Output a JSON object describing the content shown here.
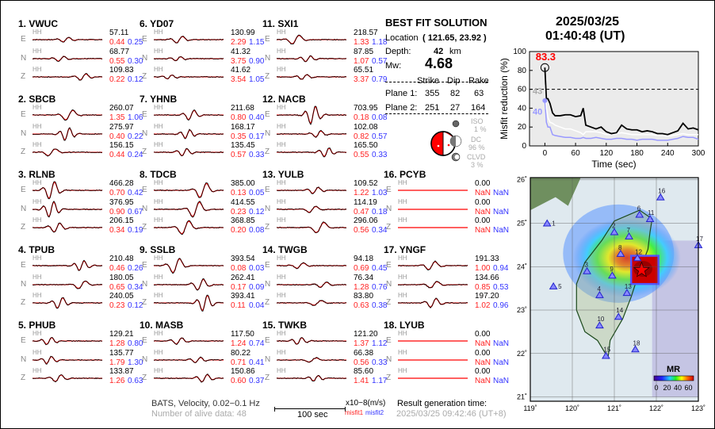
{
  "colors": {
    "observed": "#000000",
    "synthetic": "#ff0000",
    "misfit1": "#ff2222",
    "misfit2": "#3333ff",
    "mr_line": "#000000",
    "variance_line": "#ffffff",
    "misfit2_line": "#9999ff"
  },
  "stations": [
    {
      "num": "1.",
      "name": "VWUC",
      "comps": [
        {
          "c": "E",
          "ch": "HH",
          "peak": "57.11",
          "m1": "0.44",
          "m2": "0.25"
        },
        {
          "c": "N",
          "ch": "HH",
          "peak": "68.77",
          "m1": "0.55",
          "m2": "0.30"
        },
        {
          "c": "Z",
          "ch": "HH",
          "peak": "109.83",
          "m1": "0.22",
          "m2": "0.12"
        }
      ]
    },
    {
      "num": "2.",
      "name": "SBCB",
      "comps": [
        {
          "c": "E",
          "ch": "HH",
          "peak": "260.07",
          "m1": "1.35",
          "m2": "1.06"
        },
        {
          "c": "N",
          "ch": "HH",
          "peak": "275.97",
          "m1": "0.40",
          "m2": "0.22"
        },
        {
          "c": "Z",
          "ch": "HH",
          "peak": "156.15",
          "m1": "0.44",
          "m2": "0.24"
        }
      ]
    },
    {
      "num": "3.",
      "name": "RLNB",
      "comps": [
        {
          "c": "E",
          "ch": "HH",
          "peak": "466.28",
          "m1": "0.70",
          "m2": "0.42"
        },
        {
          "c": "N",
          "ch": "HH",
          "peak": "376.95",
          "m1": "0.90",
          "m2": "0.67"
        },
        {
          "c": "Z",
          "ch": "HH",
          "peak": "206.15",
          "m1": "0.34",
          "m2": "0.19"
        }
      ]
    },
    {
      "num": "4.",
      "name": "TPUB",
      "comps": [
        {
          "c": "E",
          "ch": "HH",
          "peak": "210.48",
          "m1": "0.46",
          "m2": "0.26"
        },
        {
          "c": "N",
          "ch": "HH",
          "peak": "180.05",
          "m1": "0.65",
          "m2": "0.34"
        },
        {
          "c": "Z",
          "ch": "HH",
          "peak": "240.05",
          "m1": "0.23",
          "m2": "0.12"
        }
      ]
    },
    {
      "num": "5.",
      "name": "PHUB",
      "comps": [
        {
          "c": "E",
          "ch": "HH",
          "peak": "129.21",
          "m1": "1.28",
          "m2": "0.80"
        },
        {
          "c": "N",
          "ch": "HH",
          "peak": "135.77",
          "m1": "1.79",
          "m2": "1.30"
        },
        {
          "c": "Z",
          "ch": "HH",
          "peak": "133.87",
          "m1": "1.26",
          "m2": "0.63"
        }
      ]
    },
    {
      "num": "6.",
      "name": "YD07",
      "comps": [
        {
          "c": "E",
          "ch": "HH",
          "peak": "130.99",
          "m1": "2.29",
          "m2": "1.15"
        },
        {
          "c": "N",
          "ch": "HH",
          "peak": "41.32",
          "m1": "3.75",
          "m2": "0.90"
        },
        {
          "c": "Z",
          "ch": "HH",
          "peak": "41.62",
          "m1": "3.54",
          "m2": "1.05"
        }
      ]
    },
    {
      "num": "7.",
      "name": "YHNB",
      "comps": [
        {
          "c": "E",
          "ch": "HH",
          "peak": "211.68",
          "m1": "0.80",
          "m2": "0.40"
        },
        {
          "c": "N",
          "ch": "HH",
          "peak": "168.17",
          "m1": "0.35",
          "m2": "0.17"
        },
        {
          "c": "Z",
          "ch": "HH",
          "peak": "135.45",
          "m1": "0.57",
          "m2": "0.33"
        }
      ]
    },
    {
      "num": "8.",
      "name": "TDCB",
      "comps": [
        {
          "c": "E",
          "ch": "HH",
          "peak": "385.00",
          "m1": "0.13",
          "m2": "0.05"
        },
        {
          "c": "N",
          "ch": "HH",
          "peak": "414.55",
          "m1": "0.23",
          "m2": "0.12"
        },
        {
          "c": "Z",
          "ch": "HH",
          "peak": "368.85",
          "m1": "0.20",
          "m2": "0.08"
        }
      ]
    },
    {
      "num": "9.",
      "name": "SSLB",
      "comps": [
        {
          "c": "E",
          "ch": "HH",
          "peak": "393.54",
          "m1": "0.08",
          "m2": "0.03"
        },
        {
          "c": "N",
          "ch": "HH",
          "peak": "262.41",
          "m1": "0.17",
          "m2": "0.09"
        },
        {
          "c": "Z",
          "ch": "HH",
          "peak": "393.41",
          "m1": "0.11",
          "m2": "0.04"
        }
      ]
    },
    {
      "num": "10.",
      "name": "MASB",
      "comps": [
        {
          "c": "E",
          "ch": "HH",
          "peak": "117.50",
          "m1": "1.24",
          "m2": "0.74"
        },
        {
          "c": "N",
          "ch": "HH",
          "peak": "80.22",
          "m1": "0.71",
          "m2": "0.41"
        },
        {
          "c": "Z",
          "ch": "HH",
          "peak": "150.86",
          "m1": "0.60",
          "m2": "0.37"
        }
      ]
    },
    {
      "num": "11.",
      "name": "SXI1",
      "comps": [
        {
          "c": "E",
          "ch": "HH",
          "peak": "218.57",
          "m1": "1.33",
          "m2": "1.18"
        },
        {
          "c": "N",
          "ch": "HH",
          "peak": "87.85",
          "m1": "1.07",
          "m2": "0.57"
        },
        {
          "c": "Z",
          "ch": "HH",
          "peak": "65.51",
          "m1": "3.37",
          "m2": "0.79"
        }
      ]
    },
    {
      "num": "12.",
      "name": "NACB",
      "comps": [
        {
          "c": "E",
          "ch": "HH",
          "peak": "703.95",
          "m1": "0.18",
          "m2": "0.08"
        },
        {
          "c": "N",
          "ch": "HH",
          "peak": "102.08",
          "m1": "0.82",
          "m2": "0.57"
        },
        {
          "c": "Z",
          "ch": "HH",
          "peak": "165.50",
          "m1": "0.55",
          "m2": "0.33"
        }
      ]
    },
    {
      "num": "13.",
      "name": "YULB",
      "comps": [
        {
          "c": "E",
          "ch": "HH",
          "peak": "109.52",
          "m1": "1.22",
          "m2": "1.03"
        },
        {
          "c": "N",
          "ch": "HH",
          "peak": "114.19",
          "m1": "0.47",
          "m2": "0.18"
        },
        {
          "c": "Z",
          "ch": "HH",
          "peak": "296.06",
          "m1": "0.56",
          "m2": "0.34"
        }
      ]
    },
    {
      "num": "14.",
      "name": "TWGB",
      "comps": [
        {
          "c": "E",
          "ch": "HH",
          "peak": "94.18",
          "m1": "0.69",
          "m2": "0.45"
        },
        {
          "c": "N",
          "ch": "HH",
          "peak": "76.34",
          "m1": "1.28",
          "m2": "0.76"
        },
        {
          "c": "Z",
          "ch": "HH",
          "peak": "83.80",
          "m1": "0.63",
          "m2": "0.38"
        }
      ]
    },
    {
      "num": "15.",
      "name": "TWKB",
      "comps": [
        {
          "c": "E",
          "ch": "HH",
          "peak": "121.20",
          "m1": "1.37",
          "m2": "1.12"
        },
        {
          "c": "N",
          "ch": "HH",
          "peak": "66.38",
          "m1": "0.56",
          "m2": "0.33"
        },
        {
          "c": "Z",
          "ch": "HH",
          "peak": "85.60",
          "m1": "1.41",
          "m2": "1.17"
        }
      ]
    },
    {
      "num": "16.",
      "name": "PCYB",
      "comps": [
        {
          "c": "E",
          "ch": "HH",
          "peak": "0.00",
          "m1": "NaN",
          "m2": "NaN"
        },
        {
          "c": "N",
          "ch": "HH",
          "peak": "0.00",
          "m1": "NaN",
          "m2": "NaN"
        },
        {
          "c": "Z",
          "ch": "HH",
          "peak": "0.00",
          "m1": "NaN",
          "m2": "NaN"
        }
      ]
    },
    {
      "num": "17.",
      "name": "YNGF",
      "comps": [
        {
          "c": "E",
          "ch": "HH",
          "peak": "191.33",
          "m1": "1.00",
          "m2": "0.94"
        },
        {
          "c": "N",
          "ch": "HH",
          "peak": "134.66",
          "m1": "0.85",
          "m2": "0.53"
        },
        {
          "c": "Z",
          "ch": "HH",
          "peak": "197.20",
          "m1": "1.02",
          "m2": "0.96"
        }
      ]
    },
    {
      "num": "18.",
      "name": "LYUB",
      "comps": [
        {
          "c": "E",
          "ch": "HH",
          "peak": "0.00",
          "m1": "NaN",
          "m2": "NaN"
        },
        {
          "c": "N",
          "ch": "HH",
          "peak": "0.00",
          "m1": "NaN",
          "m2": "NaN"
        },
        {
          "c": "Z",
          "ch": "HH",
          "peak": "0.00",
          "m1": "NaN",
          "m2": "NaN"
        }
      ]
    }
  ],
  "footer": {
    "network": "BATS, Velocity, 0.02−0.1 Hz",
    "alive": "Number of alive data: 48",
    "scale_bar": "100 sec",
    "units": "x10−8(m/s)",
    "misfit1": "misfit1",
    "misfit2": "misfit2",
    "gen_label": "Result generation time:",
    "gen_time": "2025/03/25 09:42:46 (UT+8)"
  },
  "solution": {
    "title": "BEST FIT SOLUTION",
    "location_label": "Location",
    "location": "( 121.65,  23.92 )",
    "depth_label": "Depth:",
    "depth": "42",
    "depth_unit": "km",
    "mw_label": "Mw:",
    "mw": "4.68",
    "headers": [
      "Strike",
      "Dip",
      "Rake"
    ],
    "planes": [
      {
        "label": "Plane 1:",
        "strike": "355",
        "dip": "82",
        "rake": "63"
      },
      {
        "label": "Plane 2:",
        "strike": "251",
        "dip": "27",
        "rake": "164"
      }
    ],
    "iso": {
      "label": "ISO",
      "pct": "1",
      "unit": "%"
    },
    "dc": {
      "label": "DC",
      "pct": "96",
      "unit": "%"
    },
    "clvd": {
      "label": "CLVD",
      "pct": "3",
      "unit": "%"
    }
  },
  "event": {
    "date": "2025/03/25",
    "time": "01:40:48  (UT)"
  },
  "chart_data": {
    "type": "line",
    "xlabel": "Time (sec)",
    "ylabel": "Misfit reduction (%)",
    "xlim": [
      -30,
      300
    ],
    "ylim": [
      0,
      100
    ],
    "xticks": [
      "0",
      "60",
      "120",
      "180",
      "240",
      "300"
    ],
    "yticks": [
      "0",
      "20",
      "40",
      "60",
      "80",
      "100"
    ],
    "threshold": 60,
    "annotations": {
      "best": "83.3",
      "white_start": "43",
      "blue_start": "40"
    },
    "x": [
      0,
      3,
      6,
      10,
      15,
      20,
      30,
      40,
      50,
      60,
      70,
      75,
      80,
      90,
      100,
      110,
      120,
      130,
      140,
      150,
      160,
      170,
      180,
      190,
      200,
      210,
      220,
      230,
      240,
      250,
      260,
      270,
      280,
      290,
      300
    ],
    "series": [
      {
        "values": [
          83,
          50,
          50,
          45,
          35,
          32,
          32,
          33,
          33,
          31,
          32,
          40,
          22,
          20,
          18,
          20,
          15,
          13,
          14,
          22,
          18,
          17,
          17,
          15,
          16,
          15,
          13,
          13,
          12,
          14,
          16,
          24,
          18,
          19,
          17
        ]
      },
      {
        "values": [
          65,
          40,
          30,
          25,
          24,
          22,
          20,
          18,
          18,
          16,
          14,
          12,
          15,
          15,
          15,
          14,
          12,
          12,
          13,
          14,
          13,
          12,
          12,
          12,
          12,
          12,
          11,
          11,
          10,
          11,
          12,
          13,
          12,
          12,
          12
        ]
      },
      {
        "values": [
          48,
          25,
          20,
          20,
          12,
          11,
          10,
          9,
          9,
          8,
          8,
          9,
          8,
          8,
          9,
          8,
          7,
          7,
          8,
          8,
          7,
          7,
          6,
          7,
          7,
          7,
          6,
          6,
          6,
          7,
          8,
          10,
          9,
          9,
          7
        ]
      }
    ]
  },
  "map": {
    "lon_ticks": [
      "119˚",
      "120˚",
      "121˚",
      "122˚",
      "123˚"
    ],
    "lat_ticks": [
      "21˚",
      "22˚",
      "23˚",
      "24˚",
      "25˚",
      "26˚"
    ],
    "legend_title": "MR",
    "legend_ticks": [
      "0",
      "20",
      "40",
      "60"
    ],
    "epicenter": {
      "lon": 121.65,
      "lat": 23.92
    },
    "stations": [
      {
        "n": "1",
        "lon": 119.4,
        "lat": 25.0
      },
      {
        "n": "2",
        "lon": 121.0,
        "lat": 24.8
      },
      {
        "n": "3",
        "lon": 120.35,
        "lat": 23.9
      },
      {
        "n": "4",
        "lon": 120.65,
        "lat": 23.35
      },
      {
        "n": "5",
        "lon": 119.55,
        "lat": 23.55
      },
      {
        "n": "6",
        "lon": 121.6,
        "lat": 25.2
      },
      {
        "n": "7",
        "lon": 121.35,
        "lat": 24.7
      },
      {
        "n": "8",
        "lon": 121.15,
        "lat": 24.3
      },
      {
        "n": "9",
        "lon": 120.95,
        "lat": 23.8
      },
      {
        "n": "10",
        "lon": 120.65,
        "lat": 22.65
      },
      {
        "n": "11",
        "lon": 121.85,
        "lat": 25.1
      },
      {
        "n": "12",
        "lon": 121.55,
        "lat": 24.2
      },
      {
        "n": "13",
        "lon": 121.3,
        "lat": 23.4
      },
      {
        "n": "14",
        "lon": 121.1,
        "lat": 22.85
      },
      {
        "n": "15",
        "lon": 120.8,
        "lat": 21.95
      },
      {
        "n": "16",
        "lon": 122.1,
        "lat": 25.6
      },
      {
        "n": "17",
        "lon": 123.0,
        "lat": 24.5
      },
      {
        "n": "18",
        "lon": 121.5,
        "lat": 22.1
      }
    ]
  }
}
